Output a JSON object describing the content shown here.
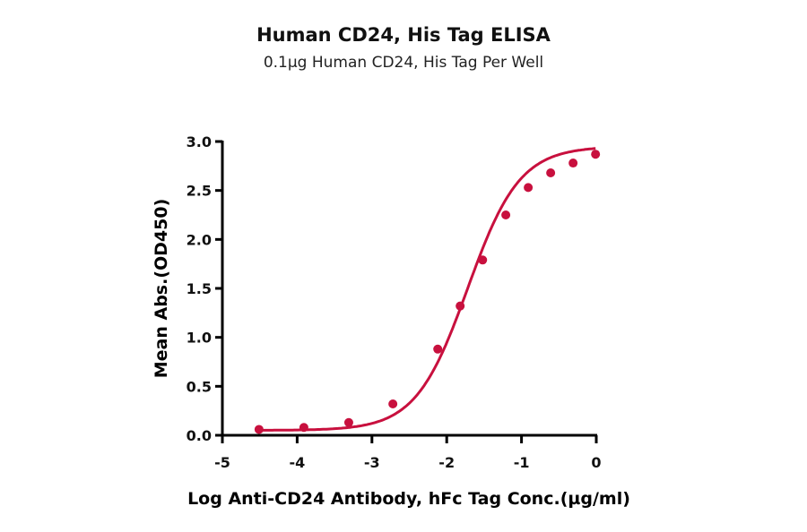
{
  "title": "Human CD24, His Tag ELISA",
  "subtitle": "0.1µg Human CD24, His Tag Per Well",
  "colors": {
    "series": "#c8103e",
    "axis": "#000000"
  },
  "chart_data": {
    "type": "line",
    "title": "Human CD24, His Tag ELISA",
    "subtitle": "0.1µg Human CD24, His Tag Per Well",
    "xlabel": "Log Anti-CD24 Antibody, hFc Tag Conc.(µg/ml)",
    "ylabel": "Mean Abs.(OD450)",
    "xlim": [
      -5,
      0
    ],
    "ylim": [
      0,
      3.0
    ],
    "xticks": [
      "-5",
      "-4",
      "-3",
      "-2",
      "-1",
      "0"
    ],
    "yticks": [
      "0.0",
      "0.5",
      "1.0",
      "1.5",
      "2.0",
      "2.5",
      "3.0"
    ],
    "grid": false,
    "legend": null,
    "series": [
      {
        "name": "Human CD24, His Tag",
        "fit": "4-parameter sigmoid",
        "x": [
          -4.51,
          -3.91,
          -3.31,
          -2.72,
          -2.12,
          -1.82,
          -1.52,
          -1.21,
          -0.91,
          -0.61,
          -0.31,
          -0.01
        ],
        "values": [
          0.06,
          0.08,
          0.13,
          0.32,
          0.88,
          1.32,
          1.79,
          2.25,
          2.53,
          2.68,
          2.78,
          2.87
        ]
      }
    ]
  }
}
